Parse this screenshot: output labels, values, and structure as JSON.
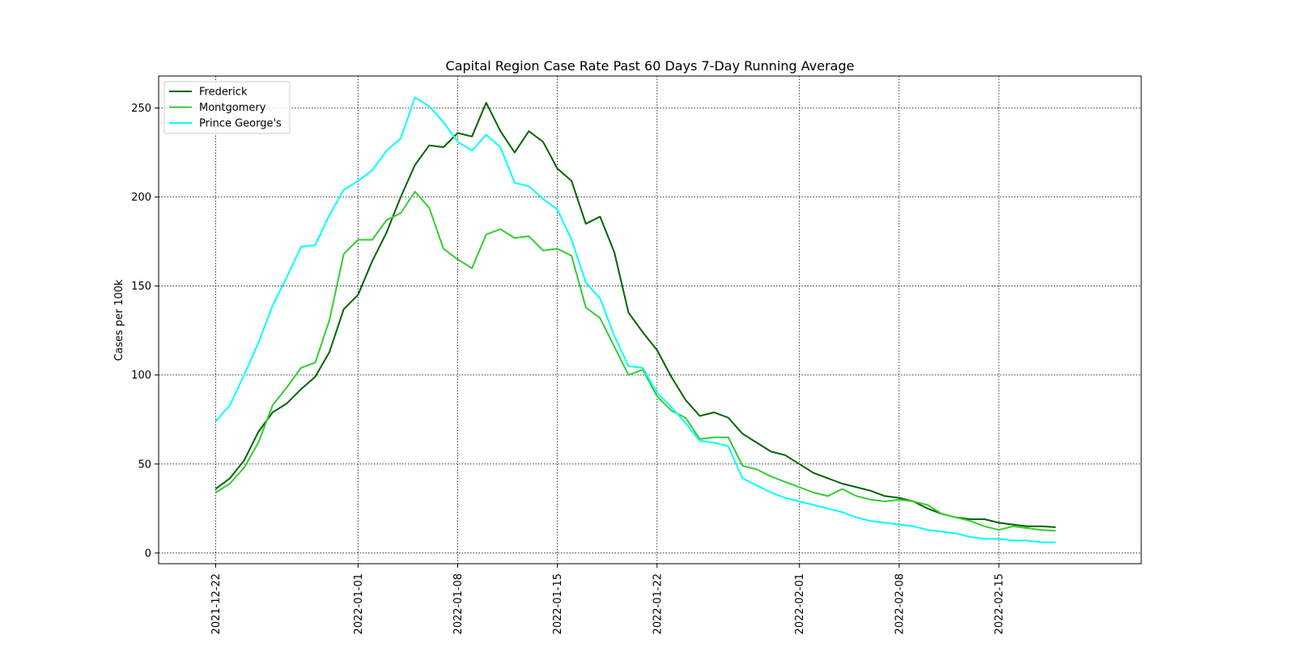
{
  "chart_data": {
    "type": "line",
    "title": "Capital Region Case Rate  Past 60 Days 7-Day Running Average",
    "xlabel": "",
    "ylabel": "Cases per 100k",
    "grid": true,
    "legend_position": "top-left",
    "xlim": [
      "2021-12-18",
      "2022-02-25"
    ],
    "ylim": [
      -6,
      268
    ],
    "x_ticks": [
      "2021-12-22",
      "2022-01-01",
      "2022-01-08",
      "2022-01-15",
      "2022-01-22",
      "2022-02-01",
      "2022-02-08",
      "2022-02-15"
    ],
    "y_ticks": [
      0,
      50,
      100,
      150,
      200,
      250
    ],
    "start_date": "2021-12-22",
    "series": [
      {
        "name": "Frederick",
        "color": "#006400",
        "values": [
          36,
          42,
          52,
          68,
          79,
          84,
          92,
          99,
          113,
          137,
          145,
          164,
          180,
          200,
          218,
          229,
          228,
          236,
          234,
          253,
          237,
          225,
          237,
          231,
          216,
          209,
          185,
          189,
          169,
          135,
          124,
          114,
          99,
          86,
          77,
          79,
          76,
          67,
          62,
          57,
          55,
          50,
          45,
          42,
          39,
          37,
          35,
          32,
          31,
          29,
          25,
          22,
          20,
          19,
          19,
          17,
          16,
          15,
          15,
          14.5
        ]
      },
      {
        "name": "Montgomery",
        "color": "#32CD32",
        "values": [
          34,
          39,
          48,
          62,
          83,
          93,
          104,
          107,
          131,
          168,
          176,
          176,
          187,
          191,
          203,
          194,
          171,
          165,
          160,
          179,
          182,
          177,
          178,
          170,
          171,
          167,
          138,
          132,
          116,
          100,
          103,
          88,
          80,
          76,
          64,
          65,
          65,
          49,
          47,
          43,
          40,
          37,
          34,
          32,
          36,
          32,
          30,
          29,
          30,
          29,
          27,
          22,
          20,
          18,
          15,
          13,
          15,
          14,
          13,
          12.5
        ]
      },
      {
        "name": "Prince George's",
        "color": "#00FFFF",
        "values": [
          74,
          83,
          100,
          118,
          139,
          155,
          172,
          173,
          190,
          204,
          209,
          215,
          226,
          233,
          256,
          251,
          242,
          231,
          226,
          235,
          228,
          208,
          206,
          199,
          193,
          176,
          152,
          143,
          122,
          105,
          104,
          90,
          82,
          73,
          63,
          62,
          60,
          42,
          38,
          34,
          31,
          29,
          27,
          25,
          23,
          20,
          18,
          17,
          16,
          15,
          13,
          12,
          11,
          9,
          8,
          8,
          7,
          7,
          6,
          6
        ]
      }
    ]
  }
}
